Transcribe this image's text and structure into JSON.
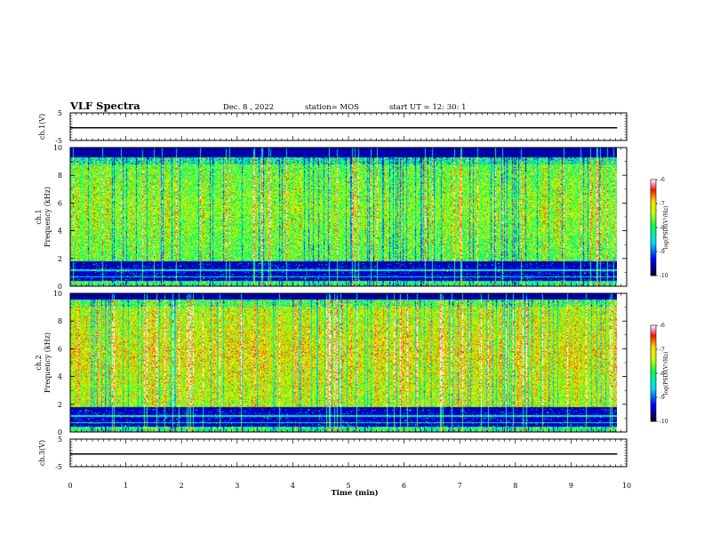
{
  "header": {
    "title": "VLF Spectra",
    "date": "Dec. 8 , 2022",
    "station": "station= MOS",
    "start": "start  UT =   12: 30: 1"
  },
  "chart_data": [
    {
      "type": "line",
      "panel": "ch.1",
      "ylabel": "ch.1(V)",
      "ylim": [
        -5,
        5
      ],
      "yticks": [
        "5",
        "-5"
      ],
      "xlim": [
        0,
        10
      ],
      "series": [
        {
          "values": [
            [
              0,
              -0.4
            ],
            [
              9.83,
              -0.4
            ]
          ]
        }
      ],
      "color": "#000000"
    },
    {
      "type": "heatmap",
      "panel": "ch.1 spectrogram",
      "ylabel": "ch.1 Frequency (kHz)",
      "ylabel_line1": "ch.1",
      "ylabel_line2": "Frequency (kHz)",
      "ylim": [
        0,
        10
      ],
      "yticks": [
        "0",
        "2",
        "4",
        "6",
        "8",
        "10"
      ],
      "xlim": [
        0,
        10
      ],
      "data_xmax": 9.83,
      "bands_kHz": {
        "quiet_band": [
          0.4,
          1.7
        ],
        "main_band": [
          1.8,
          9.3
        ]
      },
      "colorbar": {
        "label": "log(PSD)(V²/Hz)",
        "range": [
          -10,
          -6
        ],
        "ticks": [
          "-6",
          "-7",
          "-8",
          "-9",
          "-10"
        ]
      }
    },
    {
      "type": "heatmap",
      "panel": "ch.2 spectrogram",
      "ylabel": "ch.2 Frequency (kHz)",
      "ylabel_line1": "ch.2",
      "ylabel_line2": "Frequency (kHz)",
      "ylim": [
        0,
        10
      ],
      "yticks": [
        "0",
        "2",
        "4",
        "6",
        "8",
        "10"
      ],
      "xlim": [
        0,
        10
      ],
      "data_xmax": 9.83,
      "bands_kHz": {
        "quiet_band": [
          0.4,
          1.7
        ],
        "main_band": [
          1.8,
          9.6
        ]
      },
      "colorbar": {
        "label": "log(PSD)(V²/Hz)",
        "range": [
          -10,
          -6
        ],
        "ticks": [
          "-6",
          "-7",
          "-8",
          "-9",
          "-10"
        ]
      }
    },
    {
      "type": "line",
      "panel": "ch.3",
      "ylabel": "ch.3(V)",
      "ylim": [
        -5,
        5
      ],
      "yticks": [
        "5",
        "-5"
      ],
      "xlim": [
        0,
        10
      ],
      "series": [
        {
          "values": [
            [
              0,
              -0.4
            ],
            [
              9.83,
              -0.4
            ]
          ]
        }
      ],
      "color": "#000000"
    }
  ],
  "xaxis": {
    "label": "Time (min)",
    "ticks": [
      "0",
      "1",
      "2",
      "3",
      "4",
      "5",
      "6",
      "7",
      "8",
      "9",
      "10"
    ]
  },
  "colormap": [
    "#000000",
    "#000088",
    "#0000ff",
    "#00ffff",
    "#00ff00",
    "#ffff00",
    "#ff0000",
    "#ffffff"
  ]
}
